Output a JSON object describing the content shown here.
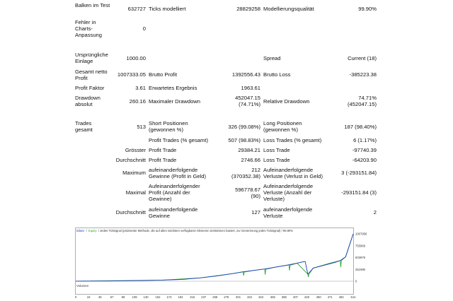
{
  "report": {
    "bars_label": "Balken im Test",
    "bars_value": "632727",
    "ticks_label": "Ticks modelliert",
    "ticks_value": "28829258",
    "quality_label": "Modellierungsqualität",
    "quality_value": "99.90%",
    "errors_label": "Fehler in Charts-Anpassung",
    "errors_value": "0",
    "deposit_label": "Ursprüngliche Einlage",
    "deposit_value": "1000.00",
    "spread_label": "Spread",
    "spread_value": "Current (18)",
    "net_profit_label": "Gesamt netto Profit",
    "net_profit_value": "1007333.05",
    "gross_profit_label": "Brutto Profit",
    "gross_profit_value": "1392556.43",
    "gross_loss_label": "Brutto Loss",
    "gross_loss_value": "-385223.38",
    "profit_factor_label": "Profit Faktor",
    "profit_factor_value": "3.61",
    "expected_payoff_label": "Erwartetes Ergebnis",
    "expected_payoff_value": "1963.61",
    "abs_drawdown_label": "Drawdown absolut",
    "abs_drawdown_value": "260.16",
    "max_drawdown_label": "Maximaler Drawdown",
    "max_drawdown_value_1": "452047.15",
    "max_drawdown_value_2": "(74.71%)",
    "rel_drawdown_label": "Relative Drawdown",
    "rel_drawdown_value_1": "74.71%",
    "rel_drawdown_value_2": "(452047.15)",
    "trades_label": "Trades gesamt",
    "trades_value": "513",
    "short_label": "Short Positionen (gewonnen %)",
    "short_value": "326 (99.08%)",
    "long_label": "Long Positionen (gewonnen %)",
    "long_value": "187 (98.40%)",
    "profit_trades_label": "Profit Trades (% gesamt)",
    "profit_trades_value": "507 (98.83%)",
    "loss_trades_label": "Loss Trades (% gesamt)",
    "loss_trades_value": "6 (1.17%)",
    "largest_label": "Grösster",
    "largest_profit_label": "Profit Trade",
    "largest_profit_value": "29384.21",
    "largest_loss_label": "Loss Trade",
    "largest_loss_value": "-97740.39",
    "average_label": "Durchschnitt",
    "average_profit_label": "Profit Trade",
    "average_profit_value": "2746.66",
    "average_loss_label": "Loss Trade",
    "average_loss_value": "-64203.90",
    "maximum_label": "Maximum",
    "max_consec_wins_label": "aufeinanderfolgende Gewinne (Profit in Geld)",
    "max_consec_wins_value_1": "212",
    "max_consec_wins_value_2": "(370352.38)",
    "max_consec_losses_label": "Aufeinanderfolgende Verluste (Verlust in Geld)",
    "max_consec_losses_value": "3 (-293151.84)",
    "maximal_label": "Maximal",
    "maximal_profit_label": "Aufeinanderfolgender Profit (Anzahl der Gewinne)",
    "maximal_profit_value_1": "596778.67",
    "maximal_profit_value_2": "(90)",
    "maximal_loss_label": "Aufeinanderfolgende Verluste (Anzahl der Verluste)",
    "maximal_loss_value": "-293151.84 (3)",
    "avg_consec_label": "Durchschnitt",
    "avg_consec_wins_label": "aufeinanderfolgende Gewinne",
    "avg_consec_wins_value": "127",
    "avg_consec_losses_label": "aufeinanderfolgende Verluste",
    "avg_consec_losses_value": "2"
  },
  "chart_data": {
    "type": "line",
    "header_balance": "Bilanz",
    "header_sep": "/",
    "header_equity": "Equity",
    "header_rest": "/ Jedes Ticksignal (präziseste Methode, die auf allen nächsten verfügbaren kleineren Zeitrahmen basiert, zur Generierung jedes Ticksignal) / 99.90%",
    "volume_label": "Volumen",
    "y_ticks": [
      "1007958",
      "755969",
      "503979",
      "251990",
      "0"
    ],
    "x_ticks": [
      "0",
      "24",
      "45",
      "67",
      "88",
      "109",
      "130",
      "152",
      "173",
      "194",
      "216",
      "237",
      "258",
      "279",
      "301",
      "322",
      "343",
      "365",
      "386",
      "407",
      "428",
      "450",
      "471",
      "492",
      "514"
    ],
    "ylim": [
      0,
      1007958
    ],
    "xlim": [
      0,
      514
    ],
    "colors": {
      "balance": "#1f3fbf",
      "equity": "#2aa82a"
    },
    "series": [
      {
        "name": "Bilanz",
        "x": [
          0,
          60,
          120,
          160,
          200,
          230,
          260,
          290,
          310,
          330,
          350,
          370,
          390,
          410,
          420,
          425,
          430,
          440,
          460,
          480,
          490,
          500,
          514
        ],
        "y": [
          1000,
          5000,
          14000,
          24000,
          40000,
          70000,
          110000,
          160000,
          200000,
          230000,
          260000,
          300000,
          340000,
          385000,
          410000,
          420000,
          150000,
          280000,
          340000,
          400000,
          440000,
          520000,
          1007333
        ]
      },
      {
        "name": "Equity",
        "x": [
          0,
          160,
          230,
          290,
          310,
          311,
          312,
          330,
          350,
          351,
          352,
          370,
          395,
          396,
          397,
          410,
          430,
          431,
          432,
          440,
          470,
          490,
          491,
          492,
          500,
          514
        ],
        "y": [
          1000,
          24000,
          70000,
          160000,
          200000,
          120000,
          195000,
          230000,
          260000,
          140000,
          255000,
          300000,
          345000,
          230000,
          340000,
          385000,
          150000,
          90000,
          150000,
          280000,
          380000,
          440000,
          300000,
          440000,
          520000,
          1007333
        ]
      }
    ]
  }
}
